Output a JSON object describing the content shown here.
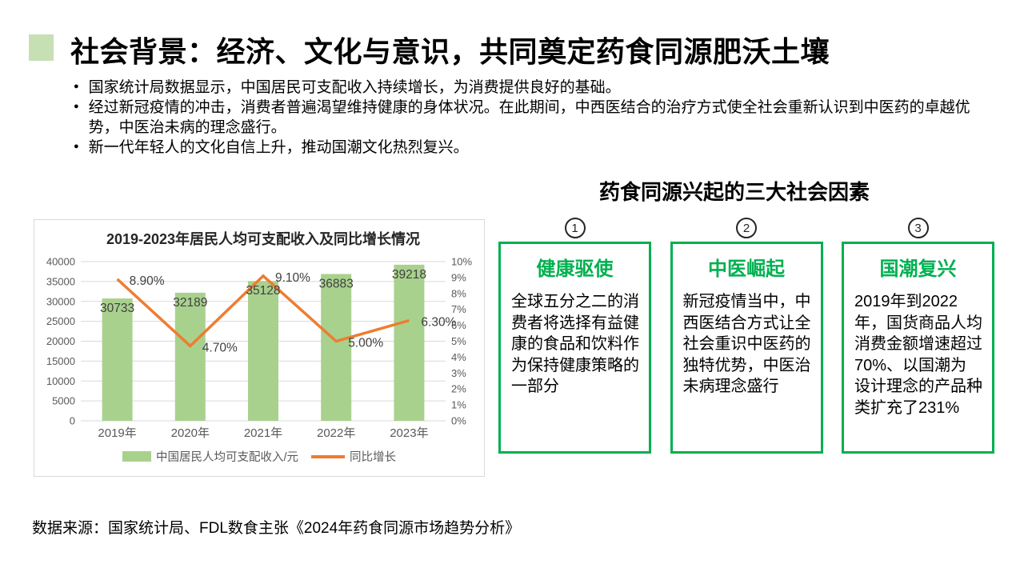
{
  "slide": {
    "title": "社会背景：经济、文化与意识，共同奠定药食同源肥沃土壤",
    "bullets": [
      "国家统计局数据显示，中国居民可支配收入持续增长，为消费提供良好的基础。",
      "经过新冠疫情的冲击，消费者普遍渴望维持健康的身体状况。在此期间，中西医结合的治疗方式使全社会重新认识到中医药的卓越优势，中医治未病的理念盛行。",
      "新一代年轻人的文化自信上升，推动国潮文化热烈复兴。"
    ],
    "source": "数据来源：国家统计局、FDL数食主张《2024年药食同源市场趋势分析》"
  },
  "right_panel": {
    "title": "药食同源兴起的三大社会因素",
    "factors": [
      {
        "number": "1",
        "heading": "健康驱使",
        "body": "全球五分之二的消费者将选择有益健康的食品和饮料作为保持健康策略的一部分"
      },
      {
        "number": "2",
        "heading": "中医崛起",
        "body": "新冠疫情当中，中西医结合方式让全社会重识中医药的独特优势，中医治未病理念盛行"
      },
      {
        "number": "3",
        "heading": "国潮复兴",
        "body": "2019年到2022年，国货商品人均消费金额增速超过70%、以国潮为设计理念的产品种类扩充了231%"
      }
    ]
  },
  "chart_data": {
    "type": "combo-bar-line",
    "title": "2019-2023年居民人均可支配收入及同比增长情况",
    "categories": [
      "2019年",
      "2020年",
      "2021年",
      "2022年",
      "2023年"
    ],
    "series": [
      {
        "name": "中国居民人均可支配收入/元",
        "type": "bar",
        "axis": "left",
        "values": [
          30733,
          32189,
          35128,
          36883,
          39218
        ],
        "color": "#A9D18E"
      },
      {
        "name": "同比增长",
        "type": "line",
        "axis": "right",
        "values": [
          8.9,
          4.7,
          9.1,
          5.0,
          6.3
        ],
        "labels": [
          "8.90%",
          "4.70%",
          "9.10%",
          "5.00%",
          "6.30%"
        ],
        "color": "#ED7D31"
      }
    ],
    "left_axis": {
      "min": 0,
      "max": 40000,
      "step": 5000
    },
    "right_axis": {
      "min": 0,
      "max": 10,
      "step": 1,
      "suffix": "%"
    },
    "grid": true,
    "legend_position": "bottom"
  },
  "colors": {
    "accent_square": "#C6E0B4",
    "bar_green": "#A9D18E",
    "line_orange": "#ED7D31",
    "box_green": "#00B050",
    "grid_gray": "#D9D9D9",
    "axis_text": "#595959",
    "data_label": "#404040"
  }
}
